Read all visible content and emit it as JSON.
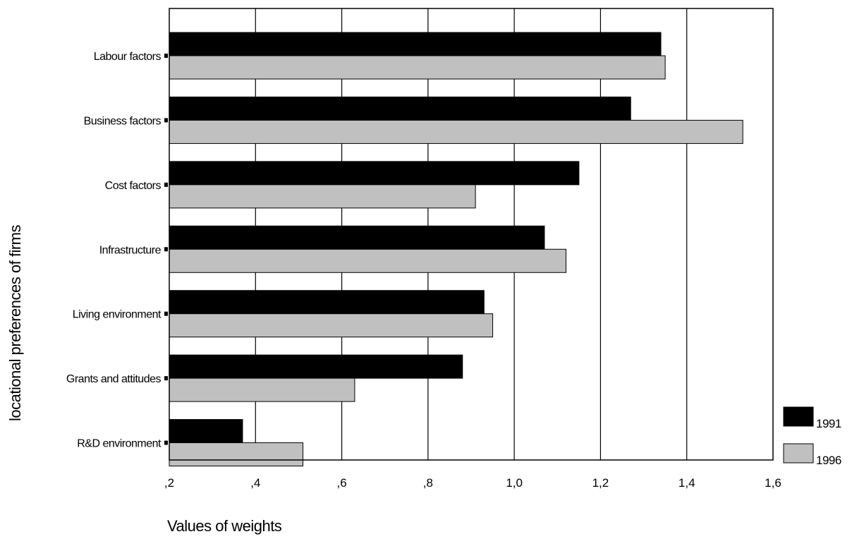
{
  "chart_data": {
    "type": "bar",
    "orientation": "horizontal",
    "title": "",
    "xlabel": "Values of weights",
    "ylabel": "locational preferences of firms",
    "xlim": [
      0.2,
      1.6
    ],
    "x_ticks": [
      0.2,
      0.4,
      0.6,
      0.8,
      1.0,
      1.2,
      1.4,
      1.6
    ],
    "x_tick_labels": [
      ",2",
      ",4",
      ",6",
      ",8",
      "1,0",
      "1,2",
      "1,4",
      "1,6"
    ],
    "grid": "vertical",
    "legend_position": "bottom-right",
    "categories": [
      "Labour factors",
      "Business factors",
      "Cost factors",
      "Infrastructure",
      "Living environment",
      "Grants and attitudes",
      "R&D environment"
    ],
    "series": [
      {
        "name": "1991",
        "color": "#000000",
        "values": [
          1.34,
          1.27,
          1.15,
          1.07,
          0.93,
          0.88,
          0.37
        ]
      },
      {
        "name": "1996",
        "color": "#c0c0c0",
        "values": [
          1.35,
          1.53,
          0.91,
          1.12,
          0.95,
          0.63,
          0.51
        ]
      }
    ]
  }
}
